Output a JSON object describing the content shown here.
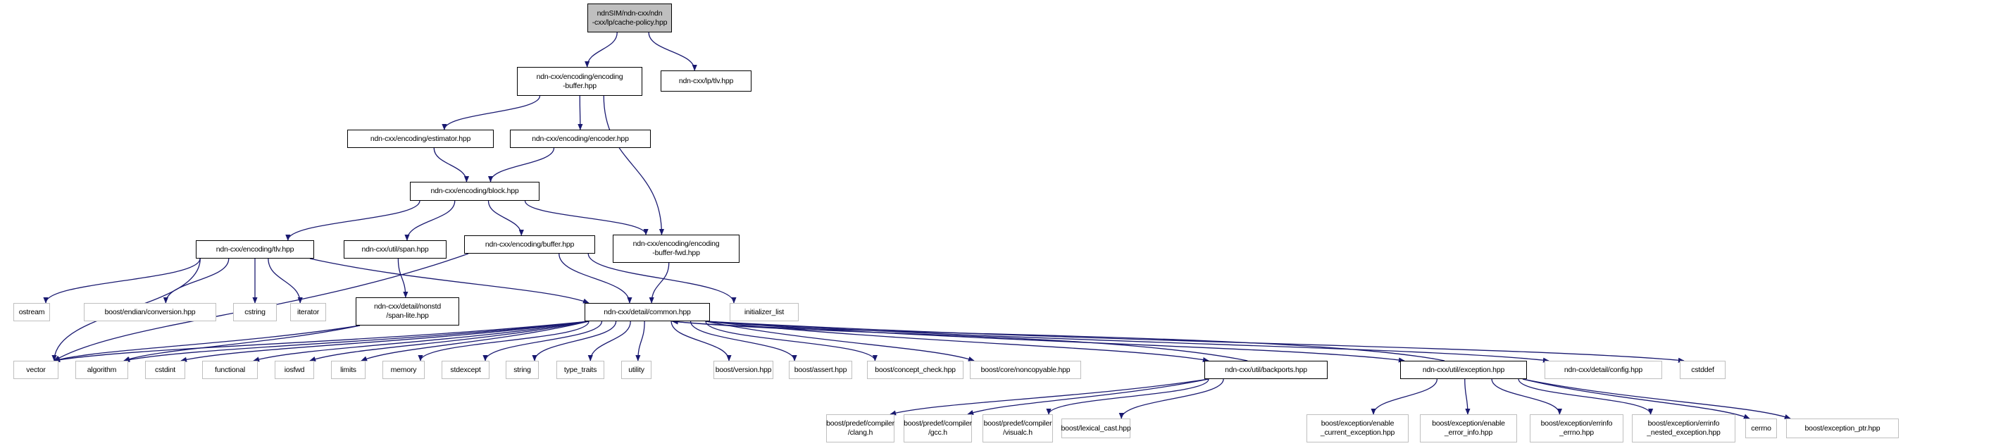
{
  "graph": {
    "edge_color": "#191970",
    "root_fill": "#bfbfbf",
    "nodes": [
      {
        "id": "root",
        "label": "ndnSIM/ndn-cxx/ndn\n-cxx/lp/cache-policy.hpp",
        "kind": "root"
      },
      {
        "id": "encbuf",
        "label": "ndn-cxx/encoding/encoding\n-buffer.hpp",
        "kind": "proj"
      },
      {
        "id": "lptlv",
        "label": "ndn-cxx/lp/tlv.hpp",
        "kind": "proj"
      },
      {
        "id": "estimator",
        "label": "ndn-cxx/encoding/estimator.hpp",
        "kind": "proj"
      },
      {
        "id": "encoder",
        "label": "ndn-cxx/encoding/encoder.hpp",
        "kind": "proj"
      },
      {
        "id": "block",
        "label": "ndn-cxx/encoding/block.hpp",
        "kind": "proj"
      },
      {
        "id": "enctlv",
        "label": "ndn-cxx/encoding/tlv.hpp",
        "kind": "proj"
      },
      {
        "id": "span",
        "label": "ndn-cxx/util/span.hpp",
        "kind": "proj"
      },
      {
        "id": "buffer",
        "label": "ndn-cxx/encoding/buffer.hpp",
        "kind": "proj"
      },
      {
        "id": "bufwd",
        "label": "ndn-cxx/encoding/encoding\n-buffer-fwd.hpp",
        "kind": "proj"
      },
      {
        "id": "spanlite",
        "label": "ndn-cxx/detail/nonstd\n/span-lite.hpp",
        "kind": "proj"
      },
      {
        "id": "common",
        "label": "ndn-cxx/detail/common.hpp",
        "kind": "proj"
      },
      {
        "id": "initlist",
        "label": "initializer_list",
        "kind": "ext"
      },
      {
        "id": "ostream",
        "label": "ostream",
        "kind": "ext"
      },
      {
        "id": "endian",
        "label": "boost/endian/conversion.hpp",
        "kind": "ext"
      },
      {
        "id": "cstring",
        "label": "cstring",
        "kind": "ext"
      },
      {
        "id": "iterator",
        "label": "iterator",
        "kind": "ext"
      },
      {
        "id": "vector",
        "label": "vector",
        "kind": "ext"
      },
      {
        "id": "algorithm",
        "label": "algorithm",
        "kind": "ext"
      },
      {
        "id": "cstdint",
        "label": "cstdint",
        "kind": "ext"
      },
      {
        "id": "functional",
        "label": "functional",
        "kind": "ext"
      },
      {
        "id": "iosfwd",
        "label": "iosfwd",
        "kind": "ext"
      },
      {
        "id": "limits",
        "label": "limits",
        "kind": "ext"
      },
      {
        "id": "memory",
        "label": "memory",
        "kind": "ext"
      },
      {
        "id": "stdexcept",
        "label": "stdexcept",
        "kind": "ext"
      },
      {
        "id": "string",
        "label": "string",
        "kind": "ext"
      },
      {
        "id": "typetraits",
        "label": "type_traits",
        "kind": "ext"
      },
      {
        "id": "utility",
        "label": "utility",
        "kind": "ext"
      },
      {
        "id": "bversion",
        "label": "boost/version.hpp",
        "kind": "ext"
      },
      {
        "id": "bassert",
        "label": "boost/assert.hpp",
        "kind": "ext"
      },
      {
        "id": "bconcept",
        "label": "boost/concept_check.hpp",
        "kind": "ext"
      },
      {
        "id": "bnoncopy",
        "label": "boost/core/noncopyable.hpp",
        "kind": "ext"
      },
      {
        "id": "backports",
        "label": "ndn-cxx/util/backports.hpp",
        "kind": "proj"
      },
      {
        "id": "exception",
        "label": "ndn-cxx/util/exception.hpp",
        "kind": "proj"
      },
      {
        "id": "config",
        "label": "ndn-cxx/detail/config.hpp",
        "kind": "ext"
      },
      {
        "id": "cstddef",
        "label": "cstddef",
        "kind": "ext"
      },
      {
        "id": "clang",
        "label": "boost/predef/compiler\n/clang.h",
        "kind": "ext"
      },
      {
        "id": "gcc",
        "label": "boost/predef/compiler\n/gcc.h",
        "kind": "ext"
      },
      {
        "id": "visualc",
        "label": "boost/predef/compiler\n/visualc.h",
        "kind": "ext"
      },
      {
        "id": "lexcast",
        "label": "boost/lexical_cast.hpp",
        "kind": "ext"
      },
      {
        "id": "encurexc",
        "label": "boost/exception/enable\n_current_exception.hpp",
        "kind": "ext"
      },
      {
        "id": "enerrinfo",
        "label": "boost/exception/enable\n_error_info.hpp",
        "kind": "ext"
      },
      {
        "id": "errinfoerrno",
        "label": "boost/exception/errinfo\n_errno.hpp",
        "kind": "ext"
      },
      {
        "id": "errinfonested",
        "label": "boost/exception/errinfo\n_nested_exception.hpp",
        "kind": "ext"
      },
      {
        "id": "cerrno",
        "label": "cerrno",
        "kind": "ext"
      },
      {
        "id": "excptr",
        "label": "boost/exception_ptr.hpp",
        "kind": "ext"
      }
    ],
    "edges": [
      [
        "root",
        "encbuf"
      ],
      [
        "root",
        "lptlv"
      ],
      [
        "encbuf",
        "estimator"
      ],
      [
        "encbuf",
        "encoder"
      ],
      [
        "encbuf",
        "bufwd"
      ],
      [
        "estimator",
        "block"
      ],
      [
        "encoder",
        "block"
      ],
      [
        "block",
        "enctlv"
      ],
      [
        "block",
        "span"
      ],
      [
        "block",
        "buffer"
      ],
      [
        "block",
        "bufwd"
      ],
      [
        "enctlv",
        "vector"
      ],
      [
        "enctlv",
        "ostream"
      ],
      [
        "enctlv",
        "endian"
      ],
      [
        "enctlv",
        "cstring"
      ],
      [
        "enctlv",
        "iterator"
      ],
      [
        "enctlv",
        "common"
      ],
      [
        "span",
        "spanlite"
      ],
      [
        "spanlite",
        "vector"
      ],
      [
        "spanlite",
        "algorithm"
      ],
      [
        "buffer",
        "vector"
      ],
      [
        "buffer",
        "common"
      ],
      [
        "buffer",
        "initlist"
      ],
      [
        "bufwd",
        "common"
      ],
      [
        "common",
        "vector"
      ],
      [
        "common",
        "algorithm"
      ],
      [
        "common",
        "cstdint"
      ],
      [
        "common",
        "functional"
      ],
      [
        "common",
        "iosfwd"
      ],
      [
        "common",
        "limits"
      ],
      [
        "common",
        "memory"
      ],
      [
        "common",
        "stdexcept"
      ],
      [
        "common",
        "string"
      ],
      [
        "common",
        "typetraits"
      ],
      [
        "common",
        "utility"
      ],
      [
        "common",
        "bversion"
      ],
      [
        "common",
        "bassert"
      ],
      [
        "common",
        "bconcept"
      ],
      [
        "common",
        "bnoncopy"
      ],
      [
        "common",
        "backports"
      ],
      [
        "common",
        "exception"
      ],
      [
        "common",
        "config"
      ],
      [
        "common",
        "cstddef"
      ],
      [
        "backports",
        "common"
      ],
      [
        "backports",
        "clang"
      ],
      [
        "backports",
        "gcc"
      ],
      [
        "backports",
        "visualc"
      ],
      [
        "backports",
        "lexcast"
      ],
      [
        "exception",
        "common"
      ],
      [
        "exception",
        "encurexc"
      ],
      [
        "exception",
        "enerrinfo"
      ],
      [
        "exception",
        "errinfoerrno"
      ],
      [
        "exception",
        "errinfonested"
      ],
      [
        "exception",
        "cerrno"
      ],
      [
        "exception",
        "excptr"
      ]
    ]
  }
}
